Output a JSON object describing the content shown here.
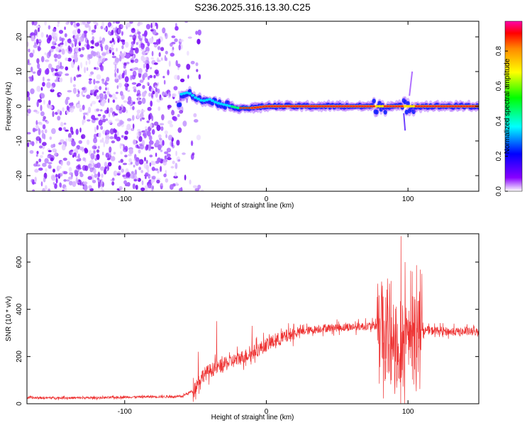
{
  "page": {
    "title": "S236.2025.316.13.30.C25"
  },
  "chart_data": [
    {
      "type": "heatmap",
      "title": "S236.2025.316.13.30.C25",
      "xlabel": "Height of straight line (km)",
      "ylabel": "Frequency (Hz)",
      "xlim": [
        -169,
        150
      ],
      "ylim": [
        -24.5,
        24.5
      ],
      "xticks": [
        -100,
        0,
        100
      ],
      "yticks": [
        -20,
        -10,
        0,
        10,
        20
      ],
      "colorbar": {
        "label": "Normalized spectral amplitude",
        "range": [
          0,
          0.97
        ],
        "ticks": [
          "0.0",
          "0.2",
          "0.4",
          "0.6",
          "0.8"
        ],
        "colors": [
          "#ffffff",
          "#8800ff",
          "#0000ff",
          "#00ffff",
          "#00ff00",
          "#ffff00",
          "#ff8800",
          "#ff0000",
          "#ff00aa"
        ]
      },
      "noise_region_km": [
        -169,
        -60
      ],
      "ridge": [
        {
          "x": -60,
          "y": 3.5
        },
        {
          "x": -55,
          "y": 4.0
        },
        {
          "x": -50,
          "y": 2.5
        },
        {
          "x": -45,
          "y": 1.5
        },
        {
          "x": -40,
          "y": 2.0
        },
        {
          "x": -35,
          "y": 1.0
        },
        {
          "x": -30,
          "y": 0.5
        },
        {
          "x": -20,
          "y": -0.5
        },
        {
          "x": -10,
          "y": -0.5
        },
        {
          "x": 0,
          "y": 0
        },
        {
          "x": 20,
          "y": 0
        },
        {
          "x": 40,
          "y": 0
        },
        {
          "x": 60,
          "y": 0
        },
        {
          "x": 80,
          "y": 0
        },
        {
          "x": 100,
          "y": 0
        },
        {
          "x": 120,
          "y": 0
        },
        {
          "x": 150,
          "y": 0
        }
      ]
    },
    {
      "type": "line",
      "xlabel": "Height of straight line (km)",
      "ylabel": "SNR (10 * v/v)",
      "xlim": [
        -169,
        150
      ],
      "ylim": [
        0,
        720
      ],
      "xticks": [
        -100,
        0,
        100
      ],
      "yticks": [
        0,
        200,
        400,
        600
      ],
      "color": "#ee3333",
      "series": [
        {
          "name": "SNR",
          "x": [
            -169,
            -150,
            -120,
            -100,
            -80,
            -60,
            -52,
            -45,
            -40,
            -30,
            -20,
            -10,
            0,
            10,
            20,
            30,
            40,
            60,
            75,
            80,
            85,
            90,
            95,
            100,
            105,
            110,
            120,
            130,
            150
          ],
          "y": [
            25,
            25,
            25,
            28,
            30,
            30,
            55,
            120,
            140,
            165,
            190,
            215,
            250,
            275,
            300,
            310,
            320,
            325,
            330,
            330,
            300,
            270,
            240,
            300,
            320,
            310,
            310,
            305,
            305
          ]
        }
      ],
      "spikes": [
        {
          "x": -48,
          "y": 220
        },
        {
          "x": -35,
          "y": 350
        },
        {
          "x": -10,
          "y": 330
        },
        {
          "x": 82,
          "y": 500
        },
        {
          "x": 88,
          "y": 520
        },
        {
          "x": 95,
          "y": 710
        },
        {
          "x": 98,
          "y": 600
        },
        {
          "x": 103,
          "y": 560
        },
        {
          "x": 108,
          "y": 450
        }
      ]
    }
  ]
}
